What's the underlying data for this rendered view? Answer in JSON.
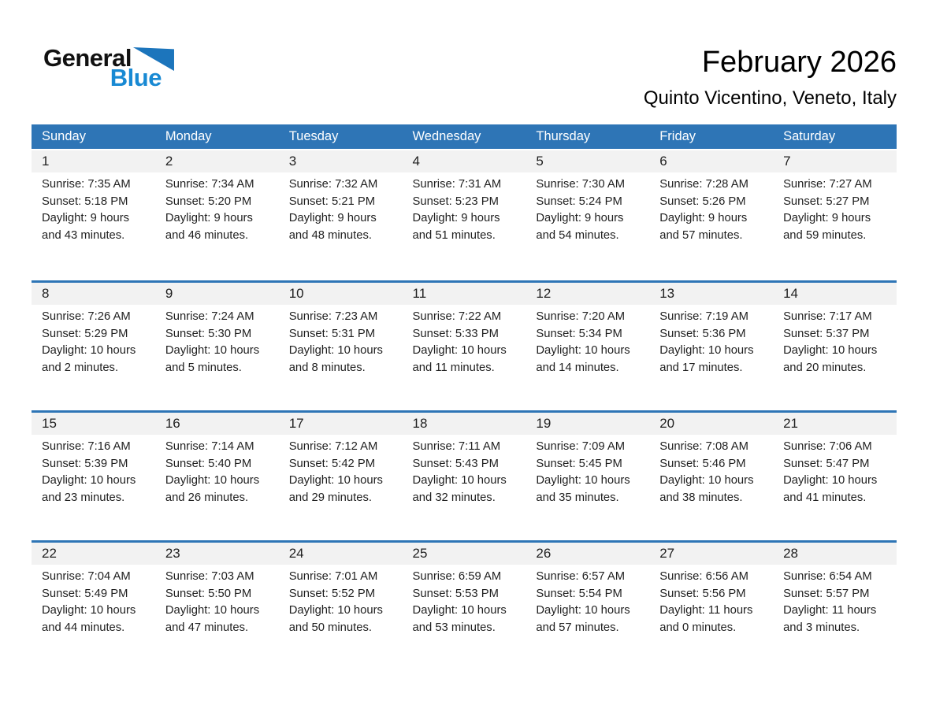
{
  "logo": {
    "general": "General",
    "blue": "Blue"
  },
  "header": {
    "title": "February 2026",
    "subtitle": "Quinto Vicentino, Veneto, Italy"
  },
  "colors": {
    "header_bar": "#2e75b6",
    "week_separator": "#2e75b6",
    "day_band": "#f2f2f2",
    "logo_blue": "#1889d3",
    "logo_triangle": "#1c75bc"
  },
  "weekdays": [
    "Sunday",
    "Monday",
    "Tuesday",
    "Wednesday",
    "Thursday",
    "Friday",
    "Saturday"
  ],
  "weeks": [
    [
      {
        "day": "1",
        "lines": [
          "Sunrise: 7:35 AM",
          "Sunset: 5:18 PM",
          "Daylight: 9 hours",
          "and 43 minutes."
        ]
      },
      {
        "day": "2",
        "lines": [
          "Sunrise: 7:34 AM",
          "Sunset: 5:20 PM",
          "Daylight: 9 hours",
          "and 46 minutes."
        ]
      },
      {
        "day": "3",
        "lines": [
          "Sunrise: 7:32 AM",
          "Sunset: 5:21 PM",
          "Daylight: 9 hours",
          "and 48 minutes."
        ]
      },
      {
        "day": "4",
        "lines": [
          "Sunrise: 7:31 AM",
          "Sunset: 5:23 PM",
          "Daylight: 9 hours",
          "and 51 minutes."
        ]
      },
      {
        "day": "5",
        "lines": [
          "Sunrise: 7:30 AM",
          "Sunset: 5:24 PM",
          "Daylight: 9 hours",
          "and 54 minutes."
        ]
      },
      {
        "day": "6",
        "lines": [
          "Sunrise: 7:28 AM",
          "Sunset: 5:26 PM",
          "Daylight: 9 hours",
          "and 57 minutes."
        ]
      },
      {
        "day": "7",
        "lines": [
          "Sunrise: 7:27 AM",
          "Sunset: 5:27 PM",
          "Daylight: 9 hours",
          "and 59 minutes."
        ]
      }
    ],
    [
      {
        "day": "8",
        "lines": [
          "Sunrise: 7:26 AM",
          "Sunset: 5:29 PM",
          "Daylight: 10 hours",
          "and 2 minutes."
        ]
      },
      {
        "day": "9",
        "lines": [
          "Sunrise: 7:24 AM",
          "Sunset: 5:30 PM",
          "Daylight: 10 hours",
          "and 5 minutes."
        ]
      },
      {
        "day": "10",
        "lines": [
          "Sunrise: 7:23 AM",
          "Sunset: 5:31 PM",
          "Daylight: 10 hours",
          "and 8 minutes."
        ]
      },
      {
        "day": "11",
        "lines": [
          "Sunrise: 7:22 AM",
          "Sunset: 5:33 PM",
          "Daylight: 10 hours",
          "and 11 minutes."
        ]
      },
      {
        "day": "12",
        "lines": [
          "Sunrise: 7:20 AM",
          "Sunset: 5:34 PM",
          "Daylight: 10 hours",
          "and 14 minutes."
        ]
      },
      {
        "day": "13",
        "lines": [
          "Sunrise: 7:19 AM",
          "Sunset: 5:36 PM",
          "Daylight: 10 hours",
          "and 17 minutes."
        ]
      },
      {
        "day": "14",
        "lines": [
          "Sunrise: 7:17 AM",
          "Sunset: 5:37 PM",
          "Daylight: 10 hours",
          "and 20 minutes."
        ]
      }
    ],
    [
      {
        "day": "15",
        "lines": [
          "Sunrise: 7:16 AM",
          "Sunset: 5:39 PM",
          "Daylight: 10 hours",
          "and 23 minutes."
        ]
      },
      {
        "day": "16",
        "lines": [
          "Sunrise: 7:14 AM",
          "Sunset: 5:40 PM",
          "Daylight: 10 hours",
          "and 26 minutes."
        ]
      },
      {
        "day": "17",
        "lines": [
          "Sunrise: 7:12 AM",
          "Sunset: 5:42 PM",
          "Daylight: 10 hours",
          "and 29 minutes."
        ]
      },
      {
        "day": "18",
        "lines": [
          "Sunrise: 7:11 AM",
          "Sunset: 5:43 PM",
          "Daylight: 10 hours",
          "and 32 minutes."
        ]
      },
      {
        "day": "19",
        "lines": [
          "Sunrise: 7:09 AM",
          "Sunset: 5:45 PM",
          "Daylight: 10 hours",
          "and 35 minutes."
        ]
      },
      {
        "day": "20",
        "lines": [
          "Sunrise: 7:08 AM",
          "Sunset: 5:46 PM",
          "Daylight: 10 hours",
          "and 38 minutes."
        ]
      },
      {
        "day": "21",
        "lines": [
          "Sunrise: 7:06 AM",
          "Sunset: 5:47 PM",
          "Daylight: 10 hours",
          "and 41 minutes."
        ]
      }
    ],
    [
      {
        "day": "22",
        "lines": [
          "Sunrise: 7:04 AM",
          "Sunset: 5:49 PM",
          "Daylight: 10 hours",
          "and 44 minutes."
        ]
      },
      {
        "day": "23",
        "lines": [
          "Sunrise: 7:03 AM",
          "Sunset: 5:50 PM",
          "Daylight: 10 hours",
          "and 47 minutes."
        ]
      },
      {
        "day": "24",
        "lines": [
          "Sunrise: 7:01 AM",
          "Sunset: 5:52 PM",
          "Daylight: 10 hours",
          "and 50 minutes."
        ]
      },
      {
        "day": "25",
        "lines": [
          "Sunrise: 6:59 AM",
          "Sunset: 5:53 PM",
          "Daylight: 10 hours",
          "and 53 minutes."
        ]
      },
      {
        "day": "26",
        "lines": [
          "Sunrise: 6:57 AM",
          "Sunset: 5:54 PM",
          "Daylight: 10 hours",
          "and 57 minutes."
        ]
      },
      {
        "day": "27",
        "lines": [
          "Sunrise: 6:56 AM",
          "Sunset: 5:56 PM",
          "Daylight: 11 hours",
          "and 0 minutes."
        ]
      },
      {
        "day": "28",
        "lines": [
          "Sunrise: 6:54 AM",
          "Sunset: 5:57 PM",
          "Daylight: 11 hours",
          "and 3 minutes."
        ]
      }
    ]
  ]
}
